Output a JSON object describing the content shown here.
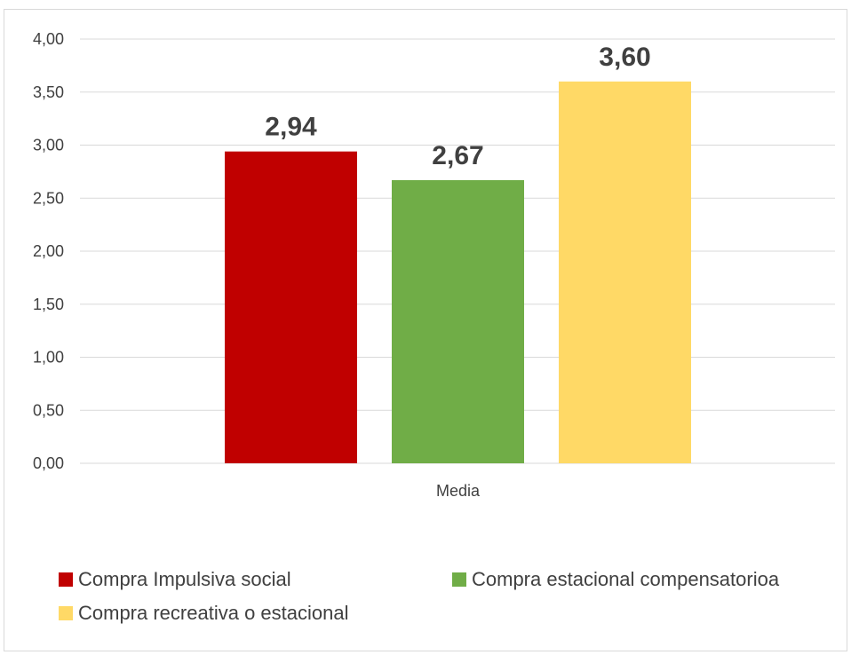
{
  "chart_data": {
    "type": "bar",
    "categories": [
      "Media"
    ],
    "series": [
      {
        "name": "Compra Impulsiva social",
        "values": [
          2.94
        ],
        "label": "2,94",
        "color": "#c00000"
      },
      {
        "name": "Compra estacional compensatorioa",
        "values": [
          2.67
        ],
        "label": "2,67",
        "color": "#70ad47"
      },
      {
        "name": "Compra recreativa o estacional",
        "values": [
          3.6
        ],
        "label": "3,60",
        "color": "#ffd966"
      }
    ],
    "ylim": [
      0,
      4
    ],
    "yticks": [
      0,
      0.5,
      1,
      1.5,
      2,
      2.5,
      3,
      3.5,
      4
    ],
    "ytick_labels": [
      "0,00",
      "0,50",
      "1,00",
      "1,50",
      "2,00",
      "2,50",
      "3,00",
      "3,50",
      "4,00"
    ],
    "grid": true,
    "legend_position": "bottom",
    "title": "",
    "xlabel": "",
    "ylabel": ""
  }
}
